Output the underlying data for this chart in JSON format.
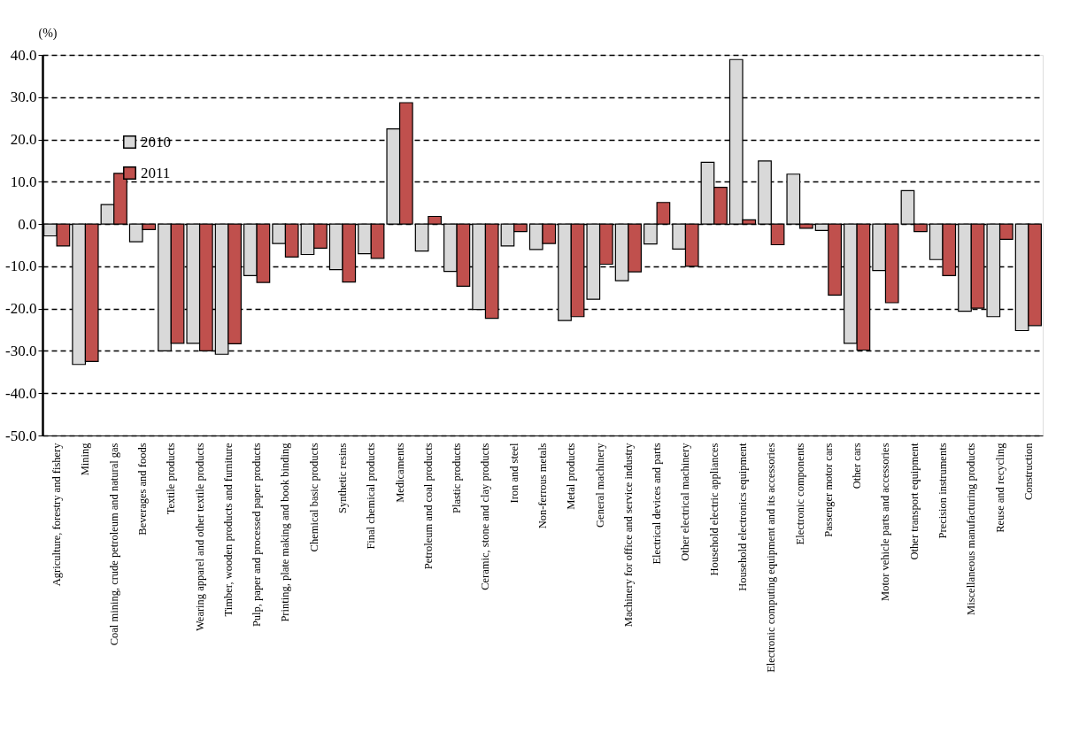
{
  "chart_data": {
    "type": "bar",
    "ylabel": "(%)",
    "categories": [
      "Agriculture, forestry and fishery",
      "Mining",
      "Coal mining, crude petroleum and natural gas",
      "Beverages and foods",
      "Textile products",
      "Wearing apparel and other textile products",
      "Timber, wooden products and furniture",
      "Pulp, paper and processed paper products",
      "Printing, plate making and book binding",
      "Chemical basic products",
      "Synthetic resins",
      "Final chemical products",
      "Medicaments",
      "Petroleum and coal products",
      "Plastic products",
      "Ceramic, stone and clay products",
      "Iron and steel",
      "Non-ferrous metals",
      "Metal products",
      "General machinery",
      "Machinery for office and service industry",
      "Electrical devices and parts",
      "Other electrical machinery",
      "Household electric appliances",
      "Household electronics equipment",
      "Electronic computing equipment and its accessories",
      "Electronic components",
      "Passenger motor cars",
      "Other cars",
      "Motor vehicle parts and accessories",
      "Other transport equipment",
      "Precision instruments",
      "Miscellaneous manufacturing products",
      "Reuse and recycling",
      "Construction"
    ],
    "series": [
      {
        "name": "2010",
        "color": "#d9d9d9",
        "values": [
          -2.8,
          -33.2,
          4.6,
          -4.2,
          -30.0,
          -28.2,
          -30.8,
          -12.2,
          -4.6,
          -7.2,
          -10.8,
          -7.0,
          22.5,
          -6.4,
          -11.2,
          -20.2,
          -5.2,
          -6.0,
          -22.8,
          -17.8,
          -13.4,
          -4.7,
          -5.9,
          14.6,
          38.9,
          14.9,
          11.8,
          -1.5,
          -28.2,
          -11.0,
          7.9,
          -8.4,
          -20.6,
          -21.9,
          -25.2
        ]
      },
      {
        "name": "2011",
        "color": "#c0504d",
        "values": [
          -5.2,
          -32.5,
          12.0,
          -1.3,
          -28.2,
          -30.0,
          -28.3,
          -13.8,
          -7.8,
          -5.7,
          -13.7,
          -8.1,
          28.7,
          1.8,
          -14.7,
          -22.3,
          -1.8,
          -4.6,
          -21.9,
          -9.5,
          -11.3,
          5.1,
          -10.0,
          8.7,
          1.0,
          -4.9,
          -1.0,
          -16.8,
          -29.8,
          -18.6,
          -1.8,
          -12.2,
          -19.9,
          -3.6,
          -24.0
        ]
      }
    ],
    "ylim": [
      -50,
      40
    ],
    "yticks": [
      {
        "value": -50,
        "label": "-50.0"
      },
      {
        "value": -40,
        "label": "-40.0"
      },
      {
        "value": -30,
        "label": "-30.0"
      },
      {
        "value": -20,
        "label": "-20.0"
      },
      {
        "value": -10,
        "label": "-10.0"
      },
      {
        "value": 0,
        "label": "0.0"
      },
      {
        "value": 10,
        "label": "10.0"
      },
      {
        "value": 20,
        "label": "20.0"
      },
      {
        "value": 30,
        "label": "30.0"
      },
      {
        "value": 40,
        "label": "40.0"
      }
    ],
    "grid": "y",
    "legend": "top left"
  }
}
